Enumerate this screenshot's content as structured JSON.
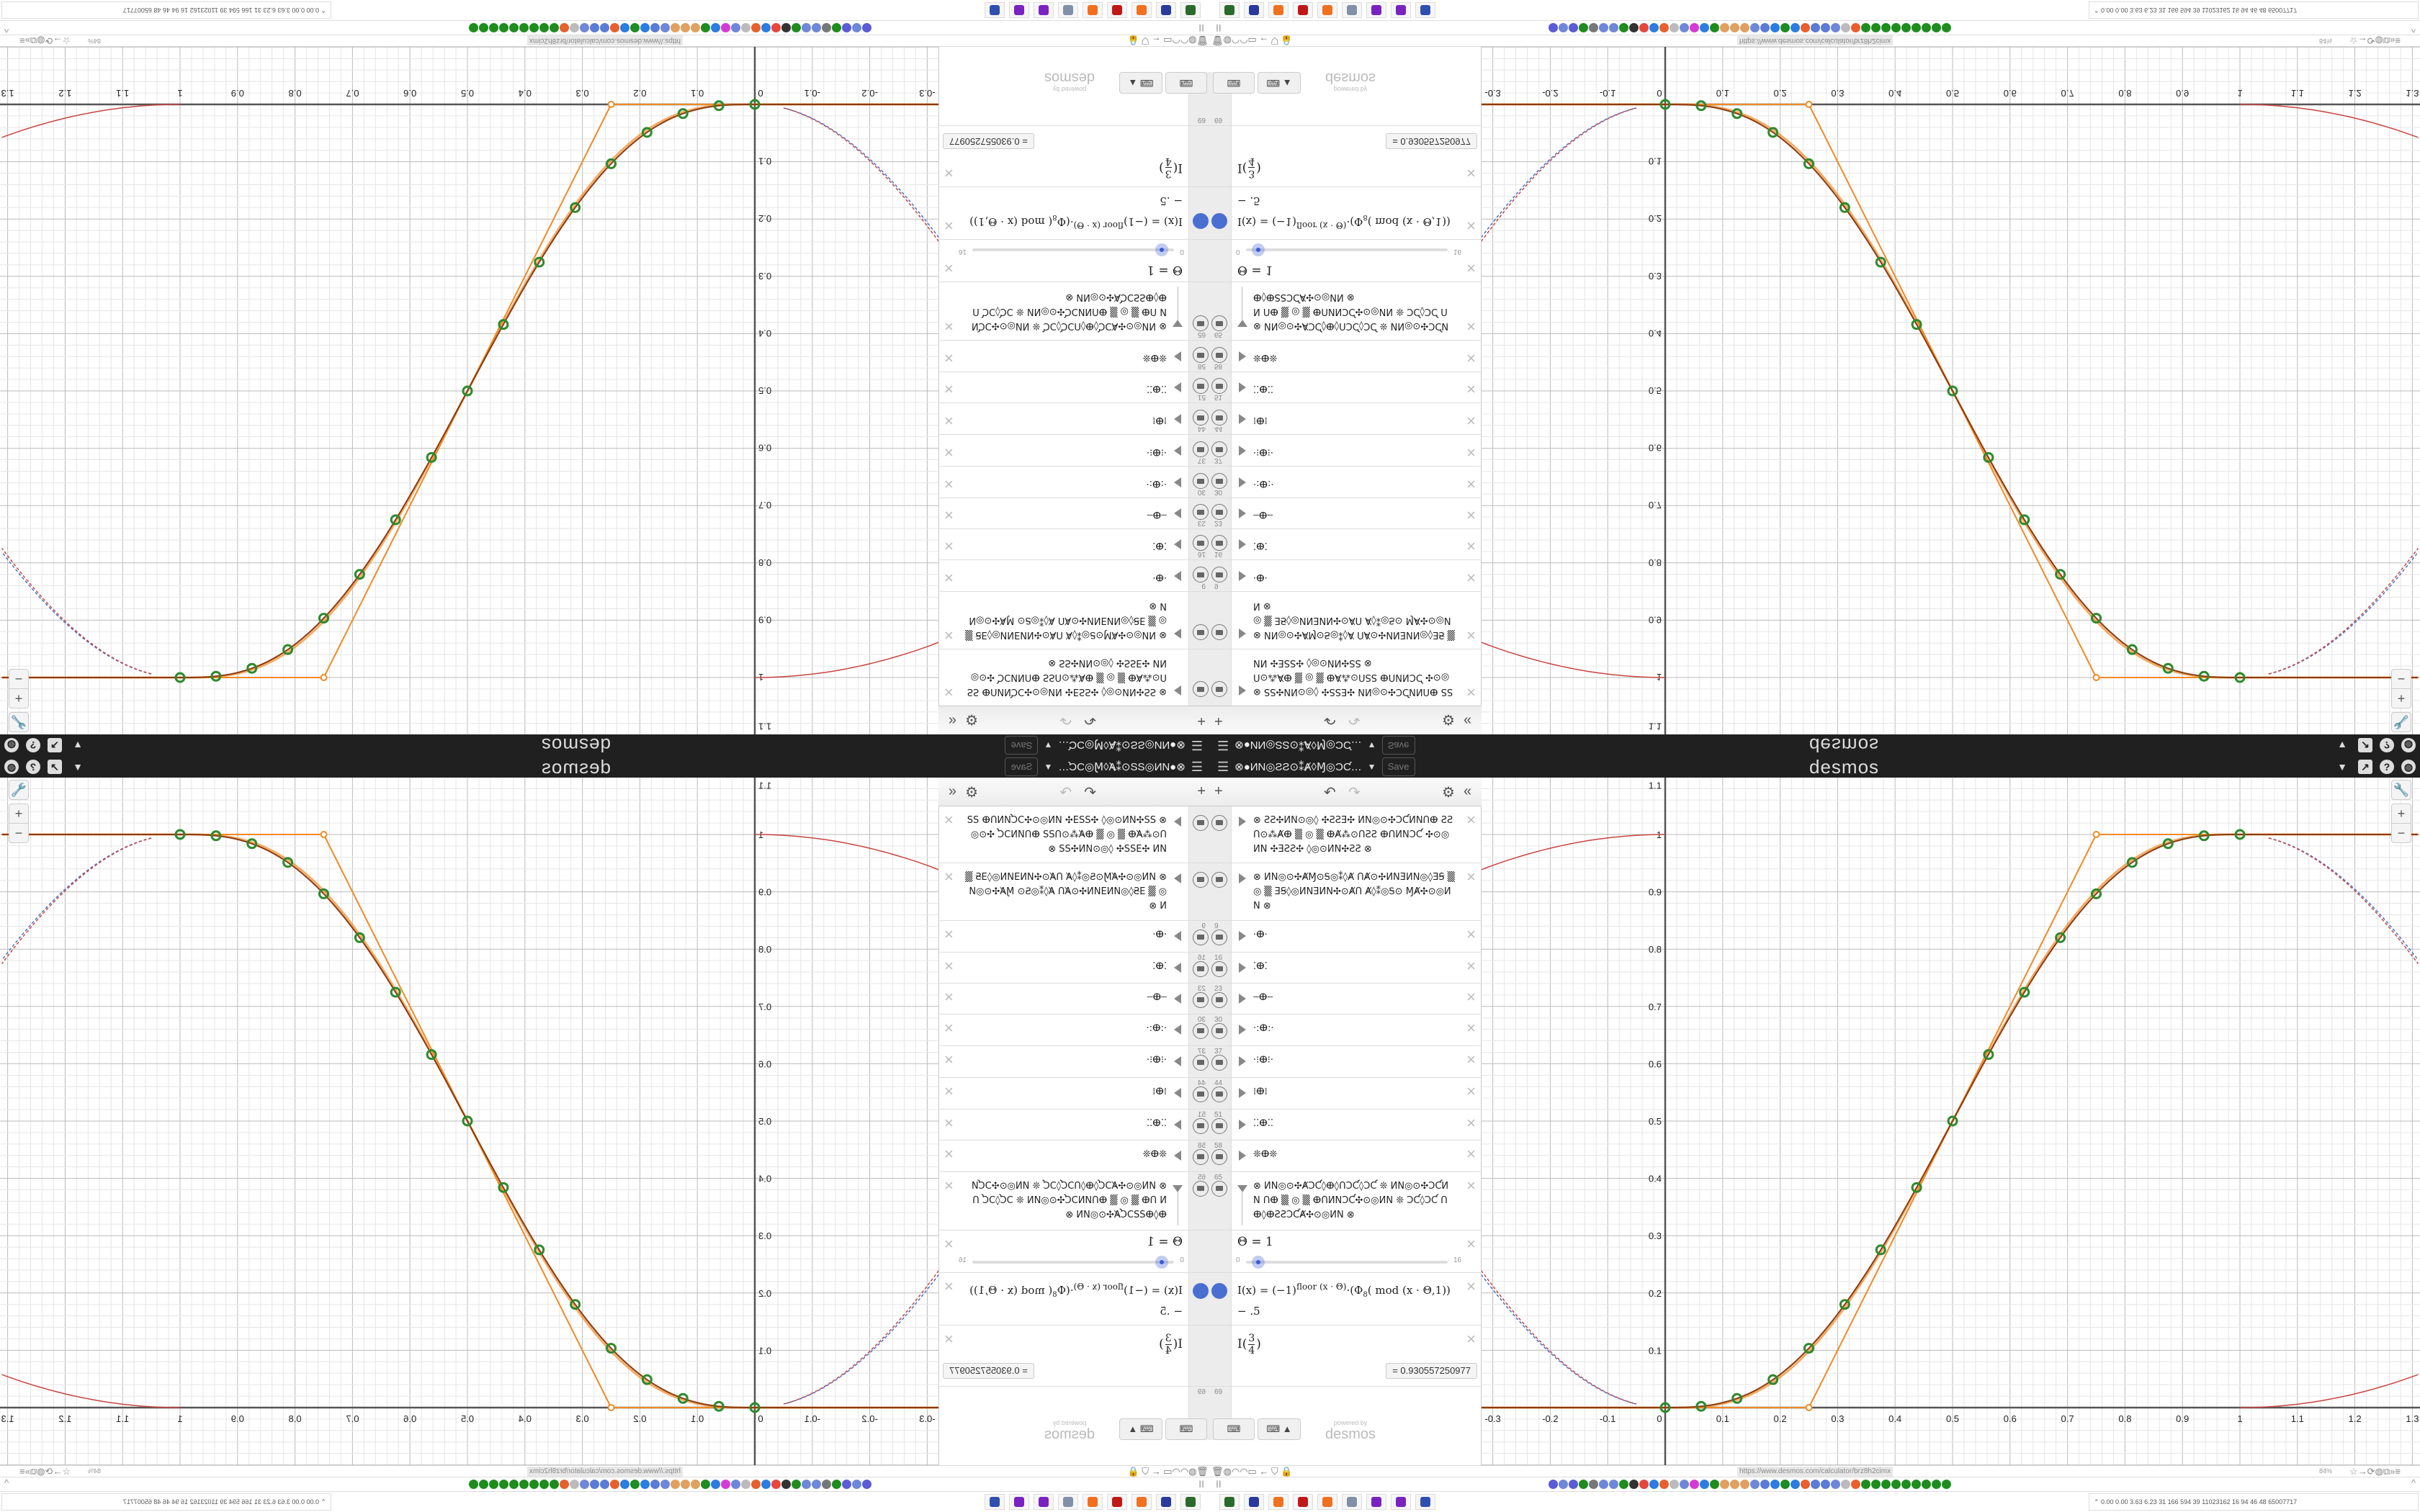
{
  "header": {
    "menu_icon": "hamburger-menu-icon",
    "graph_title": "⊗●ИN◎ƧƧ⊙⁑Ⱥ◊Ɱ◎ƆƇ…",
    "caret": "▼",
    "save_label": "Save",
    "brand": "desmos",
    "right_icons": [
      "caret-down-icon",
      "share-icon",
      "help-icon",
      "globe-icon"
    ],
    "right_glyphs": [
      "▼",
      "↗",
      "?",
      "◍"
    ]
  },
  "toolbar": {
    "add": "+",
    "undo": "↶",
    "redo": "↷",
    "settings": "⚙",
    "collapse": "«"
  },
  "expressions": [
    {
      "type": "folder",
      "num": "",
      "text": "⊗ ƧƧ✣ИN⊙◎◊ ✣ƧƧƎ✣ ИN◎⊙✣ƆƇИNՈⴲ ƧƧՈ⊙⁂Ⱥⴲ ▒ ◎ ▒ ⴲȺ⁂⊙ՈƧƧ ⴲՈИNƆƇ ✣⊙◎ИN ✣ƎƧƧ✣ ◊◎⊙ИN✣ƧƧ ⊗"
    },
    {
      "type": "folder",
      "num": "",
      "text": "⊗ ИN◎⊙✣ȺⱮ⊙Ꭶ◎⁑◊Ⱥ ՈȺ⊙✣ИNƎИN◎◊ƎꞨ ▒ ◎ ▒ ƎꞨ◊◎ИNƎИN✣⊙ȺՈ Ⱥ◊⁑◎Ꭶ⊙ ⱮȺ✣⊙◎ИN ⊗"
    },
    {
      "type": "folder",
      "num": "9",
      "text": "·ⴲ·"
    },
    {
      "type": "folder",
      "num": "16",
      "text": "⁚ⴲ⁚"
    },
    {
      "type": "folder",
      "num": "23",
      "text": "┄ⴲ┄"
    },
    {
      "type": "folder",
      "num": "30",
      "text": "·:ⴲ:·"
    },
    {
      "type": "folder",
      "num": "37",
      "text": "·⁝ⴲ⁝·"
    },
    {
      "type": "folder",
      "num": "44",
      "text": "⁞ⴲ⁞"
    },
    {
      "type": "folder",
      "num": "51",
      "text": "⁚⁚ⴲ⁚⁚"
    },
    {
      "type": "folder",
      "num": "58",
      "text": "❊ⴲ❊"
    },
    {
      "type": "folder-open",
      "num": "65",
      "text": "⊗ ИN◎⊙✣ȺƆƇ◊ⴲ◊ՈƆƇ◊ƆƇ ❊ ИN◎⊙✣ƆƇИN Ոⴲ ▒ ◎ ▒ ⴲՈИNƆƇ✣⊙◎ИN ❊ ƆƇ◊ƆƇ Ոⴲ◊ⴲƧƧƆƇȺ✣⊙◎ИN ⊗"
    }
  ],
  "slider": {
    "label": "Θ = 1",
    "value": 1,
    "min": "0",
    "max": "16"
  },
  "function_def": {
    "lhs": "I(x) = (−1)",
    "exponent": "floor (x · Θ)",
    "mid": "·(Φ",
    "subscript": "8",
    "rest": "( mod (x · Θ,1)) − .5"
  },
  "evaluation": {
    "fn": "I",
    "num": "3",
    "den": "4",
    "result": "= 0.930557250977"
  },
  "last_row_num": "69",
  "keyboard": {
    "btn1": "⌨",
    "btn2": "⌨ ▲"
  },
  "powered_by": {
    "line1": "powered by",
    "line2": "desmos"
  },
  "graph": {
    "x_ticks": [
      "-0.3",
      "-0.2",
      "-0.1",
      "0",
      "0.1",
      "0.2",
      "0.3",
      "0.4",
      "0.5",
      "0.6",
      "0.7",
      "0.8",
      "0.9",
      "1",
      "1.1",
      "1.2",
      "1.3"
    ],
    "y_ticks": [
      "0.1",
      "0.2",
      "0.3",
      "0.4",
      "0.5",
      "0.6",
      "0.7",
      "0.8",
      "0.9",
      "1",
      "1.1"
    ],
    "x_range": [
      -0.32,
      1.31
    ],
    "y_range": [
      -0.1,
      1.1
    ],
    "theta": 1,
    "sample_points_count": 17,
    "colors": {
      "main": "#8b3a10",
      "orange": "#f08a24",
      "points": "#2d8a2d",
      "dash_blue": "#4a6fd1",
      "dash_red": "#c74440",
      "red": "#c74440"
    },
    "zoom_controls": [
      "wrench-icon",
      "zoom-in-icon",
      "zoom-out-icon"
    ],
    "zoom_glyphs": [
      "🔧",
      "+",
      "−"
    ]
  },
  "browser": {
    "left_tools": "🗑◍◠◠▭ ← ⛉ 🔒",
    "url": "https://www.desmos.com/calculator/brz8h2cimx",
    "zoom": "84%",
    "right_tools": "☆→⟳◍⧉»≡",
    "bookmark_pause": "II",
    "collapse_up": "^",
    "bookmark_colors": [
      "#5b5bd6",
      "#6f87d8",
      "#5b5bd6",
      "#1e8c1e",
      "#777",
      "#6f87d8",
      "#6f87d8",
      "#1e8c1e",
      "#333",
      "#e8453c",
      "#2a7de1",
      "#e8602c",
      "#bbb",
      "#6f87d8",
      "#d63ad6",
      "#2a7de1",
      "#1e8c1e",
      "#e0a060",
      "#e0a060",
      "#e0a060",
      "#6f87d8",
      "#5b7bd6",
      "#2a7de1",
      "#1e8c1e",
      "#2a7de1",
      "#e8602c",
      "#5b7bd6",
      "#5b7bd6",
      "#6f87d8",
      "#bbb",
      "#e8602c",
      "#1e8c1e",
      "#1e8c1e",
      "#1e8c1e",
      "#1e8c1e",
      "#1e8c1e",
      "#1e8c1e",
      "#1e8c1e",
      "#1e8c1e",
      "#1e8c1e"
    ]
  },
  "taskbar": {
    "apps": [
      "terminal-icon",
      "floppy-64-icon",
      "firefox-icon",
      "settings-gear-icon",
      "firefox-icon",
      "file-manager-icon",
      "discord-icon",
      "discord-icon",
      "window-icon"
    ],
    "app_colors": [
      "#2a6a2a",
      "#2a3a9a",
      "#f07020",
      "#c01818",
      "#f07020",
      "#8090a8",
      "#7a22c0",
      "#7a22c0",
      "#3050b0"
    ],
    "stats": "⌃  0.00 0.00 3.63 6.23  31  166  594  39  11023162  16  94  46  48  65007717"
  }
}
